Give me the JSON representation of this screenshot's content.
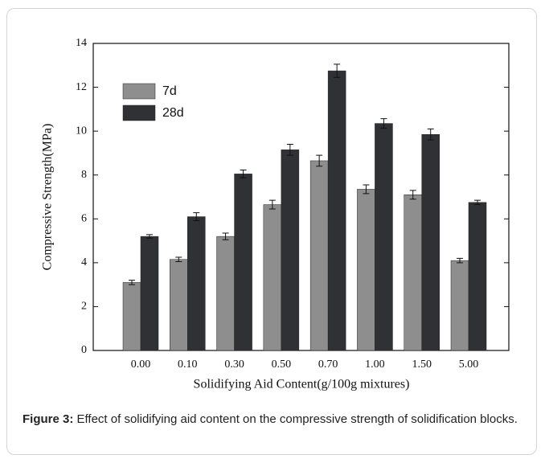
{
  "chart_data": {
    "type": "bar",
    "y_label": "Compressive Strength(MPa)",
    "x_label": "Solidifying Aid Content(g/100g mixtures)",
    "categories": [
      "0.00",
      "0.10",
      "0.30",
      "0.50",
      "0.70",
      "1.00",
      "1.50",
      "5.00"
    ],
    "series": [
      {
        "name": "7d",
        "color": "#8e8e8e",
        "values": [
          3.1,
          4.15,
          5.2,
          6.65,
          8.65,
          7.35,
          7.1,
          4.1
        ],
        "errors": [
          0.1,
          0.1,
          0.15,
          0.2,
          0.25,
          0.2,
          0.2,
          0.1
        ]
      },
      {
        "name": "28d",
        "color": "#2f3134",
        "values": [
          5.2,
          6.1,
          8.05,
          9.15,
          12.75,
          10.35,
          9.85,
          6.75
        ],
        "errors": [
          0.08,
          0.18,
          0.18,
          0.25,
          0.3,
          0.22,
          0.25,
          0.1
        ]
      }
    ],
    "ylim": [
      0,
      14
    ],
    "yticks": [
      0,
      2,
      4,
      6,
      8,
      10,
      12,
      14
    ],
    "legend": "upper left"
  },
  "caption": {
    "label": "Figure 3:",
    "text": "Effect of solidifying aid content on the compressive strength of solidification blocks."
  }
}
